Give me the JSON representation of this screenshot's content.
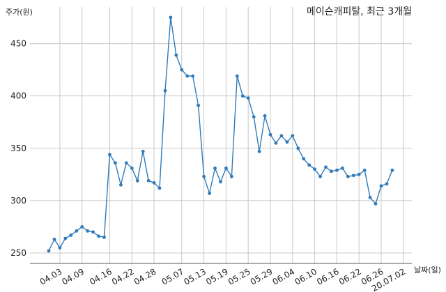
{
  "chart_data": {
    "type": "line",
    "title": "메이슨캐피탈, 최근 3개월",
    "xlabel": "날짜(일)",
    "ylabel": "주가(원)",
    "ylim": [
      240,
      485
    ],
    "yticks": [
      250,
      300,
      350,
      400,
      450
    ],
    "grid": true,
    "color": "#2f7ab9",
    "x_tick_labels": [
      "04.03",
      "04.09",
      "04.16",
      "04.22",
      "04.28",
      "05.07",
      "05.13",
      "05.19",
      "05.25",
      "05.29",
      "06.04",
      "06.10",
      "06.16",
      "06.22",
      "06.26",
      "20.07.02"
    ],
    "x_tick_index": [
      2,
      6,
      11,
      15,
      19,
      24,
      28,
      32,
      36,
      40,
      44,
      48,
      52,
      56,
      60,
      64
    ],
    "series": [
      {
        "values": [
          252,
          263,
          255,
          264,
          267,
          271,
          275,
          271,
          270,
          266,
          265,
          344,
          336,
          315,
          336,
          331,
          319,
          347,
          319,
          317,
          312,
          405,
          475,
          439,
          425,
          419,
          419,
          391,
          323,
          307,
          331,
          318,
          331,
          323,
          419,
          400,
          398,
          380,
          347,
          381,
          363,
          355,
          362,
          356,
          362,
          350,
          340,
          334,
          330,
          323,
          332,
          328,
          329,
          331,
          323,
          324,
          325,
          329,
          303,
          297,
          314,
          316,
          329
        ]
      }
    ]
  }
}
